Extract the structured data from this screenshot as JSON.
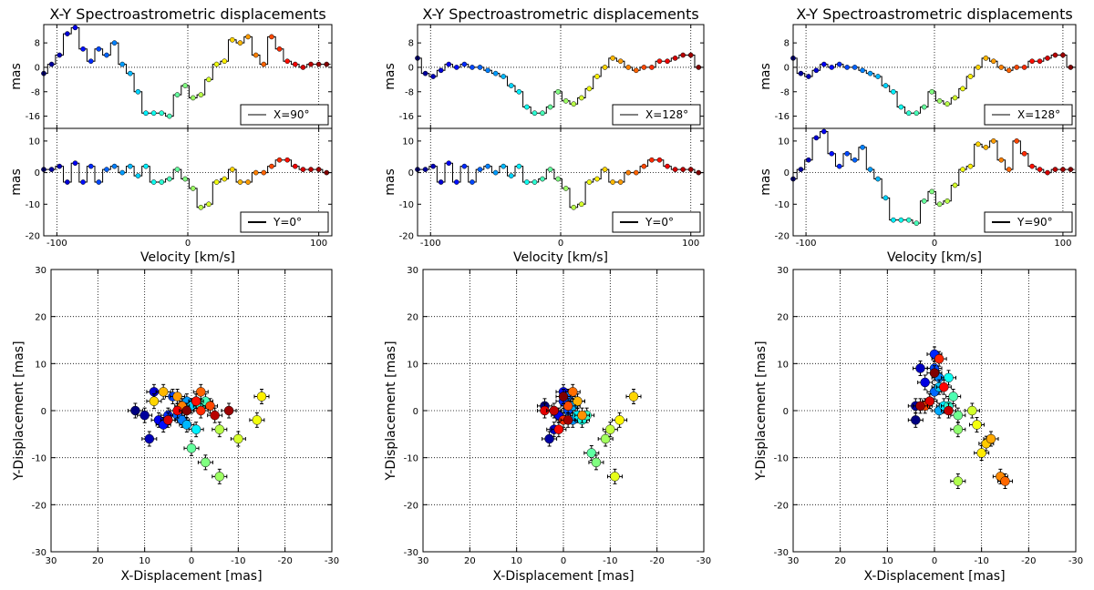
{
  "figure": {
    "panel_title": "X-Y Spectroastrometric displacements",
    "velocity_label": "Velocity [km/s]",
    "mas_label": "mas",
    "xdisp_label": "X-Displacement [mas]",
    "ydisp_label": "Y-Displacement [mas]"
  },
  "chart_data": [
    {
      "type": "line",
      "panel": "column-1-top",
      "title": "X-Y Spectroastrometric displacements",
      "xlabel": "Velocity [km/s]",
      "ylabel": "mas",
      "legend": "X=90°",
      "legend_position": "bottom-right",
      "xlim": [
        -110,
        110
      ],
      "ylim": [
        -20,
        14
      ],
      "xticks": [
        -100,
        0,
        100
      ],
      "yticks": [
        -16,
        -8,
        0,
        8
      ],
      "x": [
        -110,
        -104,
        -98,
        -92,
        -86,
        -80,
        -74,
        -68,
        -62,
        -56,
        -50,
        -44,
        -38,
        -32,
        -26,
        -20,
        -14,
        -8,
        -2,
        4,
        10,
        16,
        22,
        28,
        34,
        40,
        46,
        52,
        58,
        64,
        70,
        76,
        82,
        88,
        94,
        100,
        106
      ],
      "values": [
        -2,
        1,
        4,
        11,
        13,
        6,
        2,
        6,
        4,
        8,
        1,
        -2,
        -8,
        -15,
        -15,
        -15,
        -16,
        -9,
        -6,
        -10,
        -9,
        -4,
        1,
        2,
        9,
        8,
        10,
        4,
        1,
        10,
        6,
        2,
        1,
        0,
        1,
        1,
        1
      ]
    },
    {
      "type": "line",
      "panel": "column-1-bottom",
      "xlabel": "Velocity [km/s]",
      "ylabel": "mas",
      "legend": "Y=0°",
      "legend_position": "bottom-right",
      "xlim": [
        -110,
        110
      ],
      "ylim": [
        -20,
        14
      ],
      "xticks": [
        -100,
        0,
        100
      ],
      "yticks": [
        -20,
        -10,
        0,
        10
      ],
      "x": [
        -110,
        -104,
        -98,
        -92,
        -86,
        -80,
        -74,
        -68,
        -62,
        -56,
        -50,
        -44,
        -38,
        -32,
        -26,
        -20,
        -14,
        -8,
        -2,
        4,
        10,
        16,
        22,
        28,
        34,
        40,
        46,
        52,
        58,
        64,
        70,
        76,
        82,
        88,
        94,
        100,
        106
      ],
      "values": [
        1,
        1,
        2,
        -3,
        3,
        -3,
        2,
        -3,
        1,
        2,
        0,
        2,
        -1,
        2,
        -3,
        -3,
        -2,
        1,
        -2,
        -5,
        -11,
        -10,
        -3,
        -2,
        1,
        -3,
        -3,
        0,
        0,
        2,
        4,
        4,
        2,
        1,
        1,
        1,
        0
      ]
    },
    {
      "type": "scatter",
      "panel": "column-1-scatter",
      "xlabel": "X-Displacement [mas]",
      "ylabel": "Y-Displacement [mas]",
      "xlim": [
        30,
        -30
      ],
      "ylim": [
        -30,
        30
      ],
      "xticks": [
        30,
        20,
        10,
        0,
        -10,
        -20,
        -30
      ],
      "yticks": [
        -30,
        -20,
        -10,
        0,
        10,
        20,
        30
      ],
      "grid": true,
      "points": [
        [
          12,
          0
        ],
        [
          10,
          -1
        ],
        [
          9,
          -6
        ],
        [
          8,
          4
        ],
        [
          7,
          -2
        ],
        [
          6,
          -3
        ],
        [
          5,
          -1
        ],
        [
          4,
          3
        ],
        [
          3,
          -1
        ],
        [
          2,
          -2
        ],
        [
          1,
          2
        ],
        [
          1,
          -3
        ],
        [
          0,
          1
        ],
        [
          -1,
          -4
        ],
        [
          -1,
          2
        ],
        [
          -2,
          1
        ],
        [
          -3,
          2
        ],
        [
          0,
          -8
        ],
        [
          -3,
          -11
        ],
        [
          -6,
          -14
        ],
        [
          -6,
          -4
        ],
        [
          -10,
          -6
        ],
        [
          -14,
          -2
        ],
        [
          -15,
          3
        ],
        [
          8,
          2
        ],
        [
          6,
          4
        ],
        [
          3,
          3
        ],
        [
          2,
          1
        ],
        [
          -2,
          4
        ],
        [
          -4,
          1
        ],
        [
          -2,
          0
        ],
        [
          -1,
          2
        ],
        [
          3,
          0
        ],
        [
          5,
          -2
        ],
        [
          -5,
          -1
        ],
        [
          -8,
          0
        ],
        [
          1,
          0
        ]
      ]
    },
    {
      "type": "line",
      "panel": "column-2-top",
      "title": "X-Y Spectroastrometric displacements",
      "xlabel": "Velocity [km/s]",
      "ylabel": "mas",
      "legend": "X=128°",
      "legend_position": "bottom-right",
      "xlim": [
        -110,
        110
      ],
      "ylim": [
        -20,
        14
      ],
      "xticks": [
        -100,
        0,
        100
      ],
      "yticks": [
        -16,
        -8,
        0,
        8
      ],
      "x": [
        -110,
        -104,
        -98,
        -92,
        -86,
        -80,
        -74,
        -68,
        -62,
        -56,
        -50,
        -44,
        -38,
        -32,
        -26,
        -20,
        -14,
        -8,
        -2,
        4,
        10,
        16,
        22,
        28,
        34,
        40,
        46,
        52,
        58,
        64,
        70,
        76,
        82,
        88,
        94,
        100,
        106
      ],
      "values": [
        3,
        -2,
        -3,
        -1,
        1,
        0,
        1,
        0,
        0,
        -1,
        -2,
        -3,
        -6,
        -8,
        -13,
        -15,
        -15,
        -13,
        -8,
        -11,
        -12,
        -10,
        -7,
        -3,
        0,
        3,
        2,
        0,
        -1,
        0,
        0,
        2,
        2,
        3,
        4,
        4,
        0
      ]
    },
    {
      "type": "line",
      "panel": "column-2-bottom",
      "xlabel": "Velocity [km/s]",
      "ylabel": "mas",
      "legend": "Y=0°",
      "legend_position": "bottom-right",
      "xlim": [
        -110,
        110
      ],
      "ylim": [
        -20,
        14
      ],
      "xticks": [
        -100,
        0,
        100
      ],
      "yticks": [
        -20,
        -10,
        0,
        10
      ],
      "x": [
        -110,
        -104,
        -98,
        -92,
        -86,
        -80,
        -74,
        -68,
        -62,
        -56,
        -50,
        -44,
        -38,
        -32,
        -26,
        -20,
        -14,
        -8,
        -2,
        4,
        10,
        16,
        22,
        28,
        34,
        40,
        46,
        52,
        58,
        64,
        70,
        76,
        82,
        88,
        94,
        100,
        106
      ],
      "values": [
        1,
        1,
        2,
        -3,
        3,
        -3,
        2,
        -3,
        1,
        2,
        0,
        2,
        -1,
        2,
        -3,
        -3,
        -2,
        1,
        -2,
        -5,
        -11,
        -10,
        -3,
        -2,
        1,
        -3,
        -3,
        0,
        0,
        2,
        4,
        4,
        2,
        1,
        1,
        1,
        0
      ]
    },
    {
      "type": "scatter",
      "panel": "column-2-scatter",
      "xlabel": "X-Displacement [mas]",
      "ylabel": "Y-Displacement [mas]",
      "xlim": [
        30,
        -30
      ],
      "ylim": [
        -30,
        30
      ],
      "xticks": [
        30,
        20,
        10,
        0,
        -10,
        -20,
        -30
      ],
      "yticks": [
        -30,
        -20,
        -10,
        0,
        10,
        20,
        30
      ],
      "grid": true,
      "points": [
        [
          4,
          1
        ],
        [
          3,
          -6
        ],
        [
          2,
          -4
        ],
        [
          1,
          -1
        ],
        [
          0,
          4
        ],
        [
          0,
          2
        ],
        [
          -1,
          0
        ],
        [
          -1,
          3
        ],
        [
          -2,
          -2
        ],
        [
          -2,
          1
        ],
        [
          -3,
          2
        ],
        [
          -3,
          -1
        ],
        [
          -4,
          -2
        ],
        [
          -5,
          -1
        ],
        [
          -6,
          -9
        ],
        [
          -7,
          -11
        ],
        [
          -9,
          -6
        ],
        [
          -10,
          -4
        ],
        [
          -11,
          -14
        ],
        [
          -12,
          -2
        ],
        [
          -15,
          3
        ],
        [
          -3,
          2
        ],
        [
          -4,
          -1
        ],
        [
          -2,
          4
        ],
        [
          -1,
          1
        ],
        [
          0,
          -2
        ],
        [
          1,
          -4
        ],
        [
          4,
          0
        ],
        [
          2,
          0
        ],
        [
          -1,
          -2
        ],
        [
          0,
          3
        ]
      ]
    },
    {
      "type": "line",
      "panel": "column-3-top",
      "title": "X-Y Spectroastrometric displacements",
      "xlabel": "Velocity [km/s]",
      "ylabel": "mas",
      "legend": "X=128°",
      "legend_position": "bottom-right",
      "xlim": [
        -110,
        110
      ],
      "ylim": [
        -20,
        14
      ],
      "xticks": [
        -100,
        0,
        100
      ],
      "yticks": [
        -16,
        -8,
        0,
        8
      ],
      "x": [
        -110,
        -104,
        -98,
        -92,
        -86,
        -80,
        -74,
        -68,
        -62,
        -56,
        -50,
        -44,
        -38,
        -32,
        -26,
        -20,
        -14,
        -8,
        -2,
        4,
        10,
        16,
        22,
        28,
        34,
        40,
        46,
        52,
        58,
        64,
        70,
        76,
        82,
        88,
        94,
        100,
        106
      ],
      "values": [
        3,
        -2,
        -3,
        -1,
        1,
        0,
        1,
        0,
        0,
        -1,
        -2,
        -3,
        -6,
        -8,
        -13,
        -15,
        -15,
        -13,
        -8,
        -11,
        -12,
        -10,
        -7,
        -3,
        0,
        3,
        2,
        0,
        -1,
        0,
        0,
        2,
        2,
        3,
        4,
        4,
        0
      ]
    },
    {
      "type": "line",
      "panel": "column-3-bottom",
      "xlabel": "Velocity [km/s]",
      "ylabel": "mas",
      "legend": "Y=90°",
      "legend_position": "bottom-right",
      "xlim": [
        -110,
        110
      ],
      "ylim": [
        -20,
        14
      ],
      "xticks": [
        -100,
        0,
        100
      ],
      "yticks": [
        -20,
        -10,
        0,
        10
      ],
      "x": [
        -110,
        -104,
        -98,
        -92,
        -86,
        -80,
        -74,
        -68,
        -62,
        -56,
        -50,
        -44,
        -38,
        -32,
        -26,
        -20,
        -14,
        -8,
        -2,
        4,
        10,
        16,
        22,
        28,
        34,
        40,
        46,
        52,
        58,
        64,
        70,
        76,
        82,
        88,
        94,
        100,
        106
      ],
      "values": [
        -2,
        1,
        4,
        11,
        13,
        6,
        2,
        6,
        4,
        8,
        1,
        -2,
        -8,
        -15,
        -15,
        -15,
        -16,
        -9,
        -6,
        -10,
        -9,
        -4,
        1,
        2,
        9,
        8,
        10,
        4,
        1,
        10,
        6,
        2,
        1,
        0,
        1,
        1,
        1
      ]
    },
    {
      "type": "scatter",
      "panel": "column-3-scatter",
      "xlabel": "X-Displacement [mas]",
      "ylabel": "Y-Displacement [mas]",
      "xlim": [
        30,
        -30
      ],
      "ylim": [
        -30,
        30
      ],
      "xticks": [
        30,
        20,
        10,
        0,
        -10,
        -20,
        -30
      ],
      "yticks": [
        -30,
        -20,
        -10,
        0,
        10,
        20,
        30
      ],
      "grid": true,
      "points": [
        [
          4,
          -2
        ],
        [
          4,
          1
        ],
        [
          3,
          9
        ],
        [
          2,
          6
        ],
        [
          1,
          2
        ],
        [
          0,
          12
        ],
        [
          0,
          9
        ],
        [
          0,
          4
        ],
        [
          -1,
          7
        ],
        [
          -1,
          0
        ],
        [
          -1,
          5
        ],
        [
          -2,
          1
        ],
        [
          -3,
          7
        ],
        [
          -3,
          1
        ],
        [
          -4,
          3
        ],
        [
          -5,
          -1
        ],
        [
          -5,
          -4
        ],
        [
          -5,
          -15
        ],
        [
          -8,
          0
        ],
        [
          -9,
          -3
        ],
        [
          -10,
          -9
        ],
        [
          -11,
          -7
        ],
        [
          -12,
          -6
        ],
        [
          -14,
          -14
        ],
        [
          -15,
          -15
        ],
        [
          2,
          1
        ],
        [
          -1,
          11
        ],
        [
          -2,
          5
        ],
        [
          1,
          2
        ],
        [
          -3,
          0
        ],
        [
          3,
          1
        ],
        [
          0,
          8
        ]
      ]
    }
  ]
}
